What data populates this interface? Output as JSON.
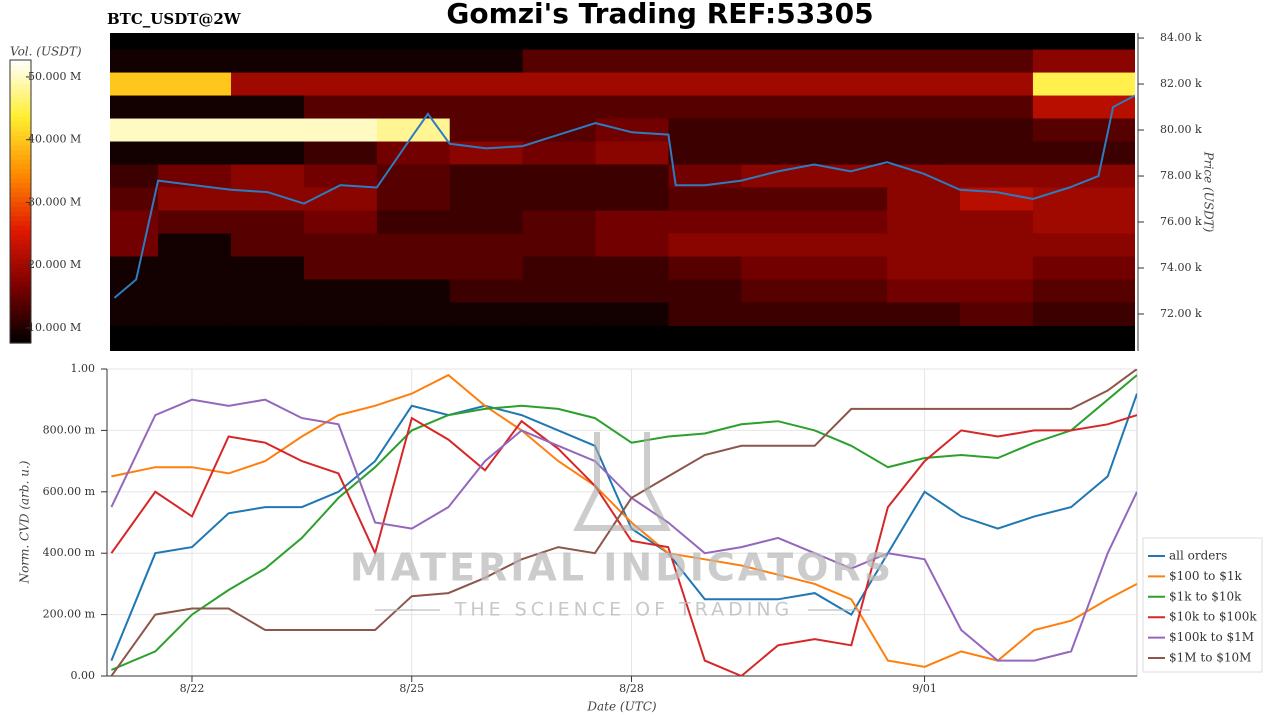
{
  "title": "Gomzi's Trading REF:53305",
  "watermark": {
    "title": "MATERIAL INDICATORS",
    "subtitle": "THE SCIENCE OF TRADING"
  },
  "chart_data": [
    {
      "type": "heatmap",
      "subtitle": "BTC_USDT@2W",
      "ylabel": "Price (USDT)",
      "colorbar_label": "Vol. (USDT)",
      "xlim": [
        -0.16,
        13.9
      ],
      "ylim": [
        70390,
        84220
      ],
      "yticks": [
        {
          "value": 72000,
          "label": "72.00 k"
        },
        {
          "value": 74000,
          "label": "74.00 k"
        },
        {
          "value": 76000,
          "label": "76.00 k"
        },
        {
          "value": 78000,
          "label": "78.00 k"
        },
        {
          "value": 80000,
          "label": "80.00 k"
        },
        {
          "value": 82000,
          "label": "82.00 k"
        },
        {
          "value": 84000,
          "label": "84.00 k"
        }
      ],
      "clim": [
        7600000,
        52700000
      ],
      "cticks": [
        {
          "value": 10000000,
          "label": "10.000 M"
        },
        {
          "value": 20000000,
          "label": "20.000 M"
        },
        {
          "value": 30000000,
          "label": "30.000 M"
        },
        {
          "value": 40000000,
          "label": "40.000 M"
        },
        {
          "value": 50000000,
          "label": "50.000 M"
        }
      ],
      "colormap": [
        "#000000",
        "#7a0000",
        "#e01800",
        "#ff8c00",
        "#ffee30",
        "#ffffff"
      ],
      "x": [
        0,
        1,
        2,
        3,
        4,
        5,
        6,
        7,
        8,
        9,
        10,
        11,
        12,
        13
      ],
      "levels": [
        83000,
        82000,
        81000,
        80000,
        79000,
        78000,
        77000,
        76000,
        75000,
        74000,
        73000,
        72000
      ],
      "values": [
        [
          9000000,
          9000000,
          9000000,
          9000000,
          9000000,
          9000000,
          14000000,
          14000000,
          14000000,
          14000000,
          14000000,
          14000000,
          14000000,
          18000000
        ],
        [
          40000000,
          40000000,
          20000000,
          20000000,
          20000000,
          20000000,
          20000000,
          20000000,
          20000000,
          20000000,
          20000000,
          20000000,
          20000000,
          45000000
        ],
        [
          9000000,
          9000000,
          9000000,
          14000000,
          14000000,
          14000000,
          14000000,
          14000000,
          14000000,
          14000000,
          14000000,
          14000000,
          14000000,
          22000000
        ],
        [
          50000000,
          50000000,
          50000000,
          50000000,
          48000000,
          14000000,
          14000000,
          16000000,
          12000000,
          12000000,
          12000000,
          12000000,
          12000000,
          14000000
        ],
        [
          9000000,
          9000000,
          9000000,
          12000000,
          16000000,
          18000000,
          16000000,
          18000000,
          12000000,
          12000000,
          12000000,
          12000000,
          12000000,
          12000000
        ],
        [
          12000000,
          16000000,
          18000000,
          16000000,
          14000000,
          12000000,
          12000000,
          12000000,
          16000000,
          18000000,
          18000000,
          18000000,
          18000000,
          18000000
        ],
        [
          14000000,
          18000000,
          18000000,
          18000000,
          14000000,
          12000000,
          12000000,
          12000000,
          14000000,
          14000000,
          14000000,
          18000000,
          22000000,
          20000000
        ],
        [
          16000000,
          14000000,
          14000000,
          16000000,
          12000000,
          12000000,
          14000000,
          16000000,
          16000000,
          16000000,
          16000000,
          18000000,
          18000000,
          20000000
        ],
        [
          16000000,
          9000000,
          14000000,
          14000000,
          14000000,
          14000000,
          14000000,
          16000000,
          18000000,
          18000000,
          18000000,
          18000000,
          18000000,
          18000000
        ],
        [
          9000000,
          9000000,
          9000000,
          14000000,
          14000000,
          14000000,
          12000000,
          12000000,
          14000000,
          16000000,
          16000000,
          18000000,
          18000000,
          16000000
        ],
        [
          9000000,
          9000000,
          9000000,
          9000000,
          9000000,
          12000000,
          12000000,
          12000000,
          12000000,
          14000000,
          14000000,
          16000000,
          16000000,
          14000000
        ],
        [
          9000000,
          9000000,
          9000000,
          9000000,
          9000000,
          9000000,
          9000000,
          9000000,
          12000000,
          12000000,
          12000000,
          12000000,
          14000000,
          12000000
        ]
      ],
      "price": {
        "color": "#2e7bbf",
        "x": [
          -0.1,
          0.2,
          0.5,
          1,
          1.5,
          2,
          2.5,
          3,
          3.5,
          4,
          4.2,
          4.5,
          5,
          5.5,
          6,
          6.5,
          7,
          7.5,
          7.6,
          8,
          8.5,
          9,
          9.5,
          10,
          10.5,
          11,
          11.5,
          12,
          12.5,
          13,
          13.4,
          13.6,
          13.9
        ],
        "values": [
          72700,
          73500,
          77800,
          77600,
          77400,
          77300,
          76800,
          77600,
          77500,
          79800,
          80700,
          79400,
          79200,
          79300,
          79800,
          80300,
          79900,
          79800,
          77600,
          77600,
          77800,
          78200,
          78500,
          78200,
          78600,
          78100,
          77400,
          77300,
          77000,
          77500,
          78000,
          81000,
          81500
        ]
      }
    },
    {
      "type": "line",
      "xlabel": "Date (UTC)",
      "ylabel": "Norm. CVD (arb. u.)",
      "grid": true,
      "legend": "right",
      "xlim": [
        -0.16,
        13.9
      ],
      "ylim": [
        0,
        1
      ],
      "xticks": [
        {
          "value": 1,
          "label": "8/22"
        },
        {
          "value": 4,
          "label": "8/25"
        },
        {
          "value": 7,
          "label": "8/28"
        },
        {
          "value": 11,
          "label": "9/01"
        }
      ],
      "yticks": [
        {
          "value": 0,
          "label": "0.00"
        },
        {
          "value": 0.2,
          "label": "200.00 m"
        },
        {
          "value": 0.4,
          "label": "400.00 m"
        },
        {
          "value": 0.6,
          "label": "600.00 m"
        },
        {
          "value": 0.8,
          "label": "800.00 m"
        },
        {
          "value": 1,
          "label": "1.00"
        }
      ],
      "x": [
        -0.1,
        0.5,
        1,
        1.5,
        2,
        2.5,
        3,
        3.5,
        4,
        4.5,
        5,
        5.5,
        6,
        6.5,
        7,
        7.5,
        8,
        8.5,
        9,
        9.5,
        10,
        10.5,
        11,
        11.5,
        12,
        12.5,
        13,
        13.5,
        13.9
      ],
      "series": [
        {
          "name": "all orders",
          "color": "#1f77b4",
          "values": [
            0.05,
            0.4,
            0.42,
            0.53,
            0.55,
            0.55,
            0.6,
            0.7,
            0.88,
            0.85,
            0.88,
            0.85,
            0.8,
            0.75,
            0.48,
            0.4,
            0.25,
            0.25,
            0.25,
            0.27,
            0.2,
            0.4,
            0.6,
            0.52,
            0.48,
            0.52,
            0.55,
            0.65,
            0.92
          ]
        },
        {
          "name": "$100 to $1k",
          "color": "#ff7f0e",
          "values": [
            0.65,
            0.68,
            0.68,
            0.66,
            0.7,
            0.78,
            0.85,
            0.88,
            0.92,
            0.98,
            0.88,
            0.8,
            0.7,
            0.62,
            0.5,
            0.4,
            0.38,
            0.36,
            0.33,
            0.3,
            0.25,
            0.05,
            0.03,
            0.08,
            0.05,
            0.15,
            0.18,
            0.25,
            0.3
          ]
        },
        {
          "name": "$1k to $10k",
          "color": "#2ca02c",
          "values": [
            0.02,
            0.08,
            0.2,
            0.28,
            0.35,
            0.45,
            0.58,
            0.68,
            0.8,
            0.85,
            0.87,
            0.88,
            0.87,
            0.84,
            0.76,
            0.78,
            0.79,
            0.82,
            0.83,
            0.8,
            0.75,
            0.68,
            0.71,
            0.72,
            0.71,
            0.76,
            0.8,
            0.9,
            0.98
          ]
        },
        {
          "name": "$10k to $100k",
          "color": "#d62728",
          "values": [
            0.4,
            0.6,
            0.52,
            0.78,
            0.76,
            0.7,
            0.66,
            0.4,
            0.84,
            0.77,
            0.67,
            0.83,
            0.74,
            0.62,
            0.44,
            0.42,
            0.05,
            0.0,
            0.1,
            0.12,
            0.1,
            0.55,
            0.7,
            0.8,
            0.78,
            0.8,
            0.8,
            0.82,
            0.85
          ]
        },
        {
          "name": "$100k to $1M",
          "color": "#9467bd",
          "values": [
            0.55,
            0.85,
            0.9,
            0.88,
            0.9,
            0.84,
            0.82,
            0.5,
            0.48,
            0.55,
            0.7,
            0.8,
            0.75,
            0.7,
            0.58,
            0.5,
            0.4,
            0.42,
            0.45,
            0.4,
            0.35,
            0.4,
            0.38,
            0.15,
            0.05,
            0.05,
            0.08,
            0.4,
            0.6
          ]
        },
        {
          "name": "$1M to $10M",
          "color": "#8c564b",
          "values": [
            0.0,
            0.2,
            0.22,
            0.22,
            0.15,
            0.15,
            0.15,
            0.15,
            0.26,
            0.27,
            0.32,
            0.38,
            0.42,
            0.4,
            0.58,
            0.65,
            0.72,
            0.75,
            0.75,
            0.75,
            0.87,
            0.87,
            0.87,
            0.87,
            0.87,
            0.87,
            0.87,
            0.93,
            1.0
          ]
        }
      ]
    }
  ]
}
